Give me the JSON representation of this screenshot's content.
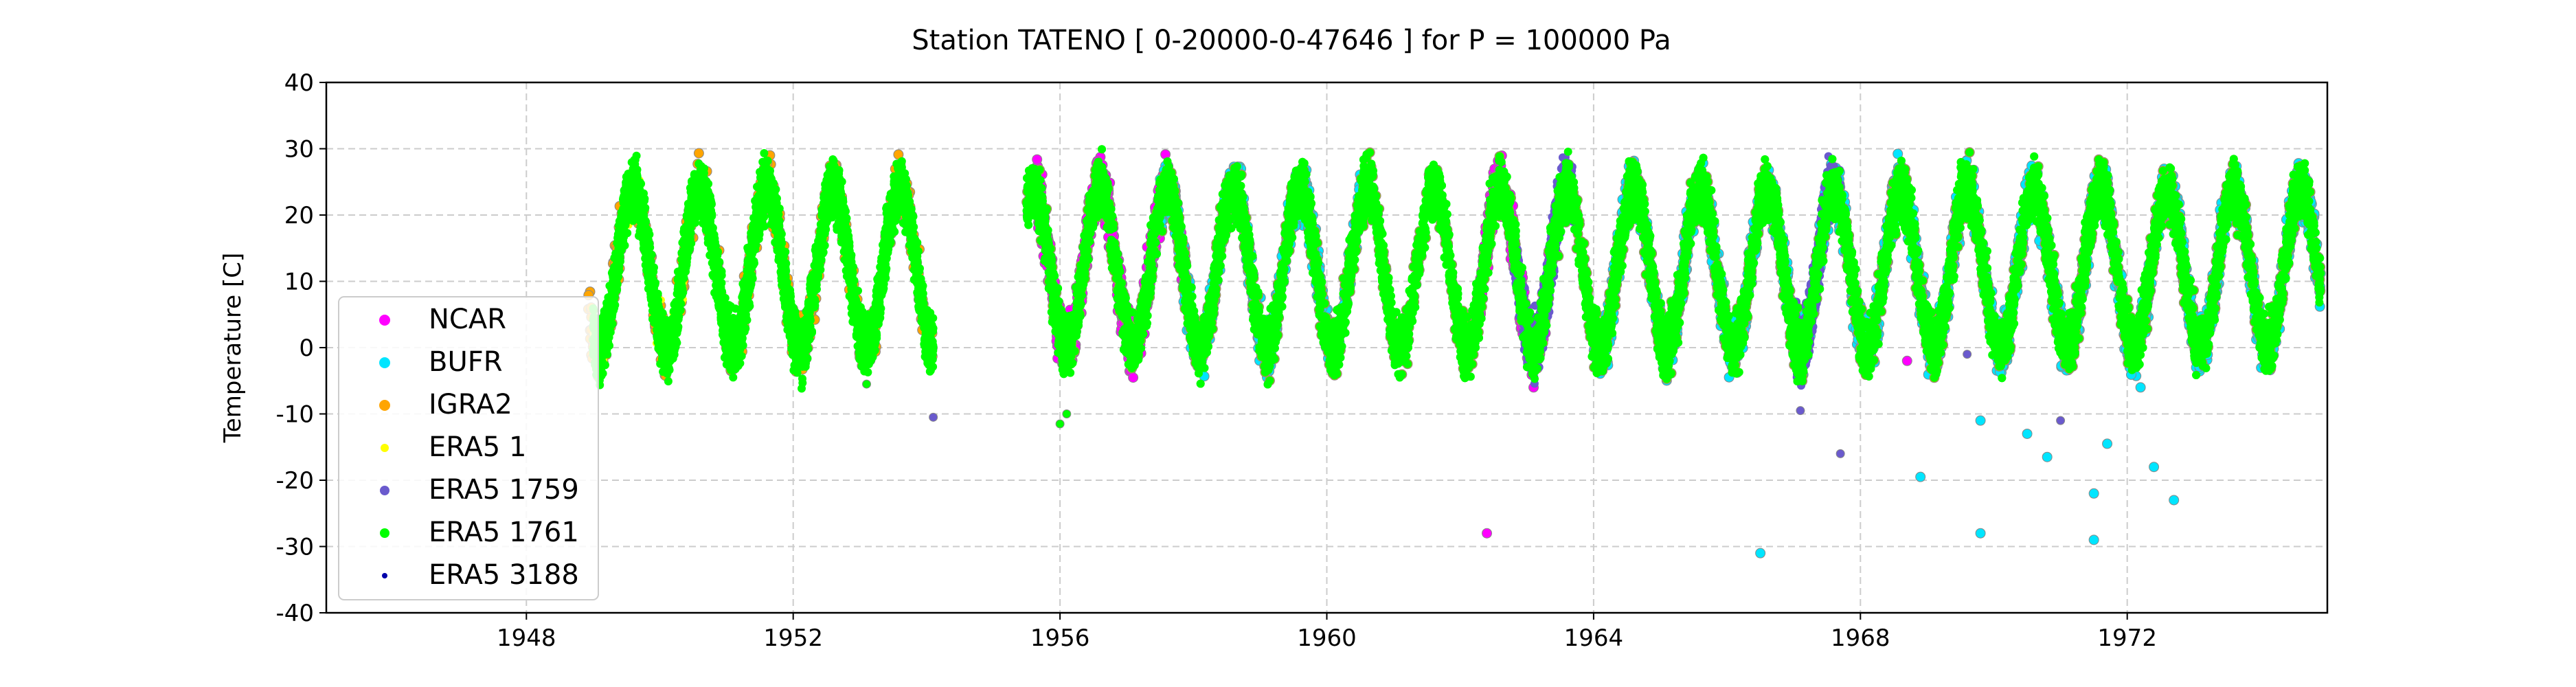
{
  "chart_data": {
    "type": "scatter",
    "title": "Station  TATENO [ 0-20000-0-47646 ]  for P = 100000 Pa",
    "xlabel": "",
    "ylabel": "Temperature [C]",
    "xlim": [
      1945,
      1975
    ],
    "ylim": [
      -40,
      40
    ],
    "xticks": [
      1948,
      1952,
      1956,
      1960,
      1964,
      1968,
      1972
    ],
    "yticks": [
      -40,
      -30,
      -20,
      -10,
      0,
      10,
      20,
      30,
      40
    ],
    "grid": true,
    "legend_position": "lower-left",
    "seasonal_model": {
      "mean": 12,
      "amplitude": 12,
      "peak_fraction_of_year": 0.6,
      "noise": 3.0
    },
    "series": [
      {
        "name": "NCAR",
        "color": "#ff00ff",
        "marker_size": 7,
        "segments": [
          [
            1955.6,
            1957.9
          ],
          [
            1962.3,
            1963.6
          ]
        ],
        "density": 400,
        "outliers": [
          {
            "x": 1962.4,
            "y": -28
          },
          {
            "x": 1963.1,
            "y": -6
          },
          {
            "x": 1968.7,
            "y": -2
          },
          {
            "x": 1969.2,
            "y": -1
          }
        ]
      },
      {
        "name": "BUFR",
        "color": "#00e5ff",
        "marker_size": 7,
        "segments": [
          [
            1957.5,
            1960.5
          ],
          [
            1964.0,
            1974.9
          ]
        ],
        "density": 300,
        "outliers": [
          {
            "x": 1966.5,
            "y": -31
          },
          {
            "x": 1968.9,
            "y": -19.5
          },
          {
            "x": 1969.8,
            "y": -28
          },
          {
            "x": 1969.8,
            "y": -11
          },
          {
            "x": 1970.5,
            "y": -13
          },
          {
            "x": 1970.8,
            "y": -16.5
          },
          {
            "x": 1971.5,
            "y": -22
          },
          {
            "x": 1971.5,
            "y": -29
          },
          {
            "x": 1971.7,
            "y": -14.5
          },
          {
            "x": 1972.2,
            "y": -6
          },
          {
            "x": 1972.4,
            "y": -18
          },
          {
            "x": 1972.7,
            "y": -23
          }
        ]
      },
      {
        "name": "IGRA2",
        "color": "#ffa500",
        "marker_size": 7,
        "segments": [
          [
            1948.9,
            1954.1
          ],
          [
            1955.5,
            1974.9
          ]
        ],
        "density": 150,
        "outliers": []
      },
      {
        "name": "ERA5 1",
        "color": "#ffff00",
        "marker_size": 5,
        "segments": [
          [
            1949.0,
            1950.5
          ]
        ],
        "density": 80,
        "outliers": []
      },
      {
        "name": "ERA5 1759",
        "color": "#6a5acd",
        "marker_size": 6,
        "segments": [
          [
            1962.8,
            1963.7
          ],
          [
            1967.0,
            1967.7
          ]
        ],
        "density": 1200,
        "outliers": [
          {
            "x": 1954.1,
            "y": -10.5
          },
          {
            "x": 1967.1,
            "y": -9.5
          },
          {
            "x": 1967.7,
            "y": -16
          },
          {
            "x": 1969.6,
            "y": -1
          },
          {
            "x": 1971.0,
            "y": -11
          }
        ]
      },
      {
        "name": "ERA5 1761",
        "color": "#00ff00",
        "marker_size": 6,
        "segments": [
          [
            1949.0,
            1954.1
          ],
          [
            1955.5,
            1974.9
          ]
        ],
        "density": 900,
        "outliers": [
          {
            "x": 1953.1,
            "y": -5.5
          },
          {
            "x": 1956.1,
            "y": -10
          },
          {
            "x": 1956.0,
            "y": -11.5
          }
        ]
      },
      {
        "name": "ERA5 3188",
        "color": "#0000aa",
        "marker_size": 3,
        "segments": [],
        "density": 0,
        "outliers": []
      }
    ]
  }
}
